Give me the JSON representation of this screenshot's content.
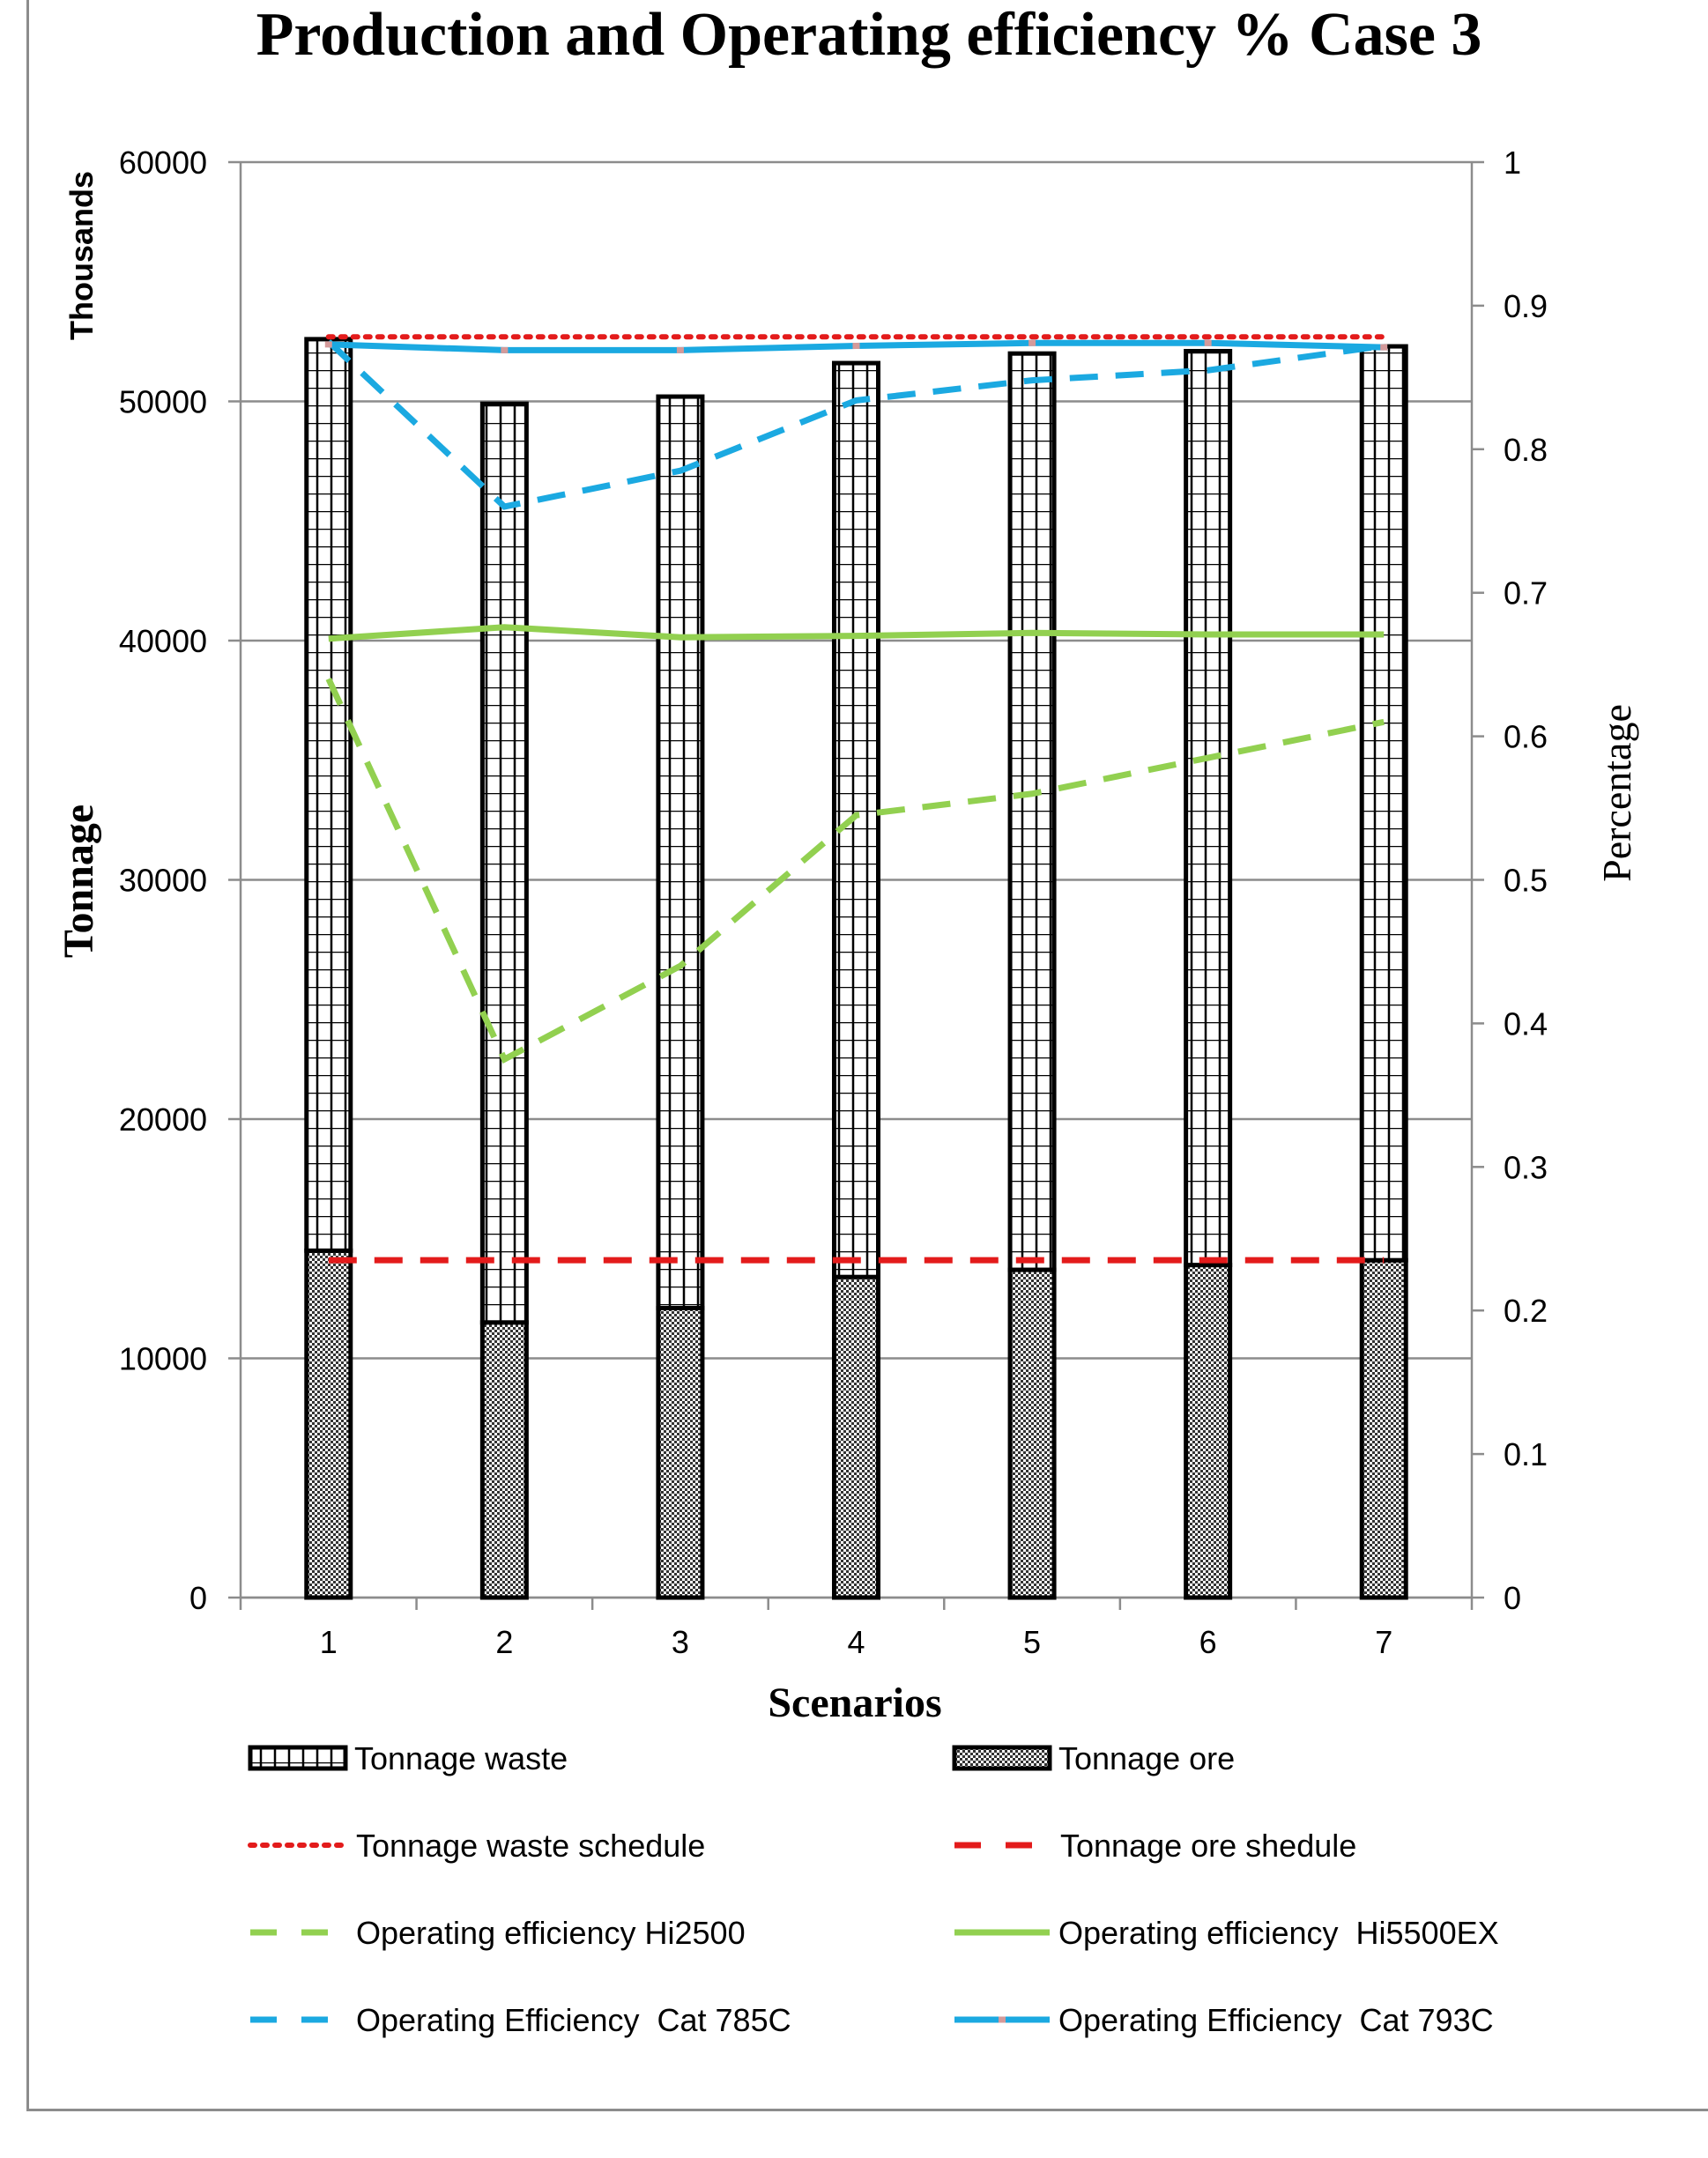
{
  "chart_data": {
    "type": "bar",
    "title": "Production and Operating efficiency % Case 3",
    "xlabel": "Scenarios",
    "ylabel": "Tonnage",
    "ylabel_unit": "Thousands",
    "y2label": "Percentage",
    "ylim": [
      0,
      60000
    ],
    "y2lim": [
      0,
      1
    ],
    "yticks": [
      "0",
      "10000",
      "20000",
      "30000",
      "40000",
      "50000",
      "60000"
    ],
    "y2ticks": [
      "0",
      "0.1",
      "0.2",
      "0.3",
      "0.4",
      "0.5",
      "0.6",
      "0.7",
      "0.8",
      "0.9",
      "1"
    ],
    "categories": [
      "1",
      "2",
      "3",
      "4",
      "5",
      "6",
      "7"
    ],
    "grid": true,
    "legend_position": "bottom",
    "bars_stacked": [
      {
        "name": "Tonnage ore",
        "values": [
          14500,
          11500,
          12100,
          13400,
          13700,
          13900,
          14100
        ],
        "color": "#000000",
        "pattern": "checker"
      },
      {
        "name": "Tonnage waste",
        "values": [
          38100,
          38400,
          38100,
          38200,
          38300,
          38200,
          38200
        ],
        "color": "#000000",
        "pattern": "grid"
      }
    ],
    "lines": [
      {
        "name": "Tonnage waste schedule",
        "axis": "left",
        "values": [
          52700,
          52700,
          52700,
          52700,
          52700,
          52700,
          52700
        ],
        "color": "#e31b1b",
        "style": "dotted"
      },
      {
        "name": "Tonnage ore shedule",
        "axis": "left",
        "values": [
          14100,
          14100,
          14100,
          14100,
          14100,
          14100,
          14100
        ],
        "color": "#e31b1b",
        "style": "dashed"
      },
      {
        "name": "Operating efficiency Hi2500",
        "axis": "right",
        "values": [
          0.64,
          0.375,
          0.44,
          0.545,
          0.56,
          0.585,
          0.61
        ],
        "color": "#92d050",
        "style": "dashed"
      },
      {
        "name": "Operating efficiency  Hi5500EX",
        "axis": "right",
        "values": [
          0.668,
          0.676,
          0.669,
          0.67,
          0.672,
          0.671,
          0.671
        ],
        "color": "#92d050",
        "style": "solid"
      },
      {
        "name": "Operating Efficiency  Cat 785C",
        "axis": "right",
        "values": [
          0.875,
          0.76,
          0.785,
          0.834,
          0.848,
          0.855,
          0.872
        ],
        "color": "#1ba9e1",
        "style": "dashed"
      },
      {
        "name": "Operating Efficiency  Cat 793C",
        "axis": "right",
        "values": [
          0.873,
          0.869,
          0.869,
          0.872,
          0.874,
          0.874,
          0.871
        ],
        "color": "#1ba9e1",
        "style": "solid",
        "marker_color": "#d49a9a"
      }
    ],
    "legend": [
      "Tonnage waste",
      "Tonnage ore",
      "Tonnage waste schedule",
      "Tonnage ore shedule",
      "Operating efficiency Hi2500",
      "Operating efficiency  Hi5500EX",
      "Operating Efficiency  Cat 785C",
      "Operating Efficiency  Cat 793C"
    ]
  }
}
